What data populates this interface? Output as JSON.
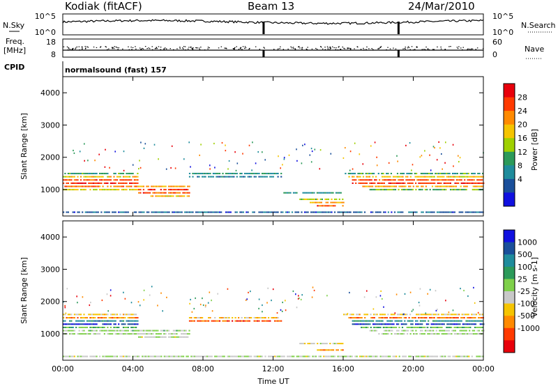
{
  "header": {
    "station": "Kodiak (fitACF)",
    "beam": "Beam 13",
    "date": "24/Mar/2010"
  },
  "sky_panel": {
    "left_label": "N.Sky",
    "right_label": "N.Search",
    "left_ticks": [
      "10^5",
      "10^0"
    ],
    "right_ticks": [
      "10^5",
      "10^0"
    ]
  },
  "freq_panel": {
    "left_label_line1": "Freq.",
    "left_label_line2": "[MHz]",
    "right_label": "Nave",
    "left_ticks": [
      "18",
      "8"
    ],
    "right_ticks": [
      "60",
      "0"
    ],
    "cpid_label": "CPID",
    "cpid_text": "normalsound (fast) 157"
  },
  "x_axis": {
    "label": "Time UT",
    "ticks": [
      "00:00",
      "04:00",
      "08:00",
      "12:00",
      "16:00",
      "20:00",
      "00:00"
    ]
  },
  "colorbars": {
    "power": {
      "label": "Power [dB]",
      "ticks": [
        "28",
        "24",
        "20",
        "16",
        "12",
        "8",
        "4"
      ],
      "colors": [
        "#e8000b",
        "#ff3a00",
        "#ff8a00",
        "#f5c400",
        "#9fd000",
        "#2c9a5a",
        "#1f8c9c",
        "#1a4f9a",
        "#1010e0"
      ]
    },
    "velocity": {
      "label": "Velocity [m s-1]",
      "ticks": [
        "1000",
        "500",
        "100",
        "25",
        "-25",
        "-100",
        "-500",
        "-1000"
      ],
      "colors": [
        "#1010e0",
        "#1a4f9a",
        "#1f8c9c",
        "#2c9a5a",
        "#7fd04a",
        "#c8c8c8",
        "#f5c400",
        "#ff8a00",
        "#ff3a00",
        "#e8000b"
      ]
    }
  },
  "chart_data": [
    {
      "type": "heatmap",
      "title": "Power [dB]",
      "xlabel": "Time UT",
      "ylabel": "Slant Range [km]",
      "xlim": [
        0,
        24
      ],
      "ylim": [
        180,
        4500
      ],
      "yticks": [
        1000,
        2000,
        3000,
        4000
      ],
      "bands": [
        {
          "t": [
            0.0,
            4.3
          ],
          "range": [
            1450,
            1550
          ],
          "value": 12
        },
        {
          "t": [
            0.0,
            4.3
          ],
          "range": [
            1350,
            1450
          ],
          "value": 20
        },
        {
          "t": [
            0.0,
            4.3
          ],
          "range": [
            1250,
            1350
          ],
          "value": 26
        },
        {
          "t": [
            0.0,
            4.3
          ],
          "range": [
            1150,
            1250
          ],
          "value": 28
        },
        {
          "t": [
            0.0,
            4.3
          ],
          "range": [
            1050,
            1150
          ],
          "value": 24
        },
        {
          "t": [
            0.0,
            4.3
          ],
          "range": [
            950,
            1050
          ],
          "value": 18
        },
        {
          "t": [
            4.3,
            7.2
          ],
          "range": [
            1050,
            1150
          ],
          "value": 22
        },
        {
          "t": [
            4.3,
            7.2
          ],
          "range": [
            950,
            1050
          ],
          "value": 28
        },
        {
          "t": [
            4.3,
            7.2
          ],
          "range": [
            850,
            950
          ],
          "value": 26
        },
        {
          "t": [
            5.0,
            7.2
          ],
          "range": [
            750,
            850
          ],
          "value": 20
        },
        {
          "t": [
            7.2,
            12.5
          ],
          "range": [
            1450,
            1550
          ],
          "value": 10
        },
        {
          "t": [
            7.2,
            12.5
          ],
          "range": [
            1350,
            1450
          ],
          "value": 8
        },
        {
          "t": [
            12.5,
            16.0
          ],
          "range": [
            850,
            950
          ],
          "value": 10
        },
        {
          "t": [
            13.5,
            16.0
          ],
          "range": [
            650,
            750
          ],
          "value": 16
        },
        {
          "t": [
            14.0,
            16.0
          ],
          "range": [
            550,
            650
          ],
          "value": 22
        },
        {
          "t": [
            14.5,
            16.0
          ],
          "range": [
            450,
            550
          ],
          "value": 26
        },
        {
          "t": [
            16.0,
            24.0
          ],
          "range": [
            1450,
            1550
          ],
          "value": 12
        },
        {
          "t": [
            16.3,
            24.0
          ],
          "range": [
            1350,
            1450
          ],
          "value": 20
        },
        {
          "t": [
            16.5,
            24.0
          ],
          "range": [
            1250,
            1350
          ],
          "value": 26
        },
        {
          "t": [
            16.5,
            24.0
          ],
          "range": [
            1150,
            1250
          ],
          "value": 28
        },
        {
          "t": [
            17.0,
            24.0
          ],
          "range": [
            1050,
            1150
          ],
          "value": 22
        },
        {
          "t": [
            17.5,
            24.0
          ],
          "range": [
            950,
            1050
          ],
          "value": 14
        },
        {
          "t": [
            0.0,
            24.0
          ],
          "range": [
            250,
            350
          ],
          "value": 6
        }
      ]
    },
    {
      "type": "heatmap",
      "title": "Velocity [m s-1]",
      "xlabel": "Time UT",
      "ylabel": "Slant Range [km]",
      "xlim": [
        0,
        24
      ],
      "ylim": [
        180,
        4500
      ],
      "yticks": [
        1000,
        2000,
        3000,
        4000
      ],
      "bands": [
        {
          "t": [
            0.0,
            4.3
          ],
          "range": [
            1550,
            1650
          ],
          "value": -300
        },
        {
          "t": [
            0.0,
            4.3
          ],
          "range": [
            1450,
            1550
          ],
          "value": -600
        },
        {
          "t": [
            0.0,
            4.3
          ],
          "range": [
            1350,
            1450
          ],
          "value": 600
        },
        {
          "t": [
            0.0,
            4.3
          ],
          "range": [
            1250,
            1350
          ],
          "value": 1000
        },
        {
          "t": [
            0.0,
            4.3
          ],
          "range": [
            1150,
            1250
          ],
          "value": 300
        },
        {
          "t": [
            0.0,
            4.3
          ],
          "range": [
            1050,
            1150
          ],
          "value": 50
        },
        {
          "t": [
            0.0,
            4.3
          ],
          "range": [
            950,
            1050
          ],
          "value": 0
        },
        {
          "t": [
            4.3,
            7.2
          ],
          "range": [
            1050,
            1150
          ],
          "value": 60
        },
        {
          "t": [
            4.3,
            7.2
          ],
          "range": [
            950,
            1050
          ],
          "value": 0
        },
        {
          "t": [
            4.3,
            7.2
          ],
          "range": [
            850,
            950
          ],
          "value": -60
        },
        {
          "t": [
            7.2,
            12.5
          ],
          "range": [
            1450,
            1550
          ],
          "value": -400
        },
        {
          "t": [
            7.2,
            12.5
          ],
          "range": [
            1350,
            1450
          ],
          "value": -800
        },
        {
          "t": [
            13.5,
            16.0
          ],
          "range": [
            650,
            750
          ],
          "value": -200
        },
        {
          "t": [
            14.5,
            16.0
          ],
          "range": [
            450,
            550
          ],
          "value": -600
        },
        {
          "t": [
            16.0,
            24.0
          ],
          "range": [
            1550,
            1650
          ],
          "value": -300
        },
        {
          "t": [
            16.3,
            24.0
          ],
          "range": [
            1450,
            1550
          ],
          "value": -700
        },
        {
          "t": [
            16.5,
            24.0
          ],
          "range": [
            1350,
            1450
          ],
          "value": 500
        },
        {
          "t": [
            16.5,
            24.0
          ],
          "range": [
            1250,
            1350
          ],
          "value": 900
        },
        {
          "t": [
            17.0,
            24.0
          ],
          "range": [
            1150,
            1250
          ],
          "value": 200
        },
        {
          "t": [
            17.5,
            24.0
          ],
          "range": [
            1050,
            1150
          ],
          "value": 0
        },
        {
          "t": [
            18.0,
            24.0
          ],
          "range": [
            950,
            1050
          ],
          "value": 0
        },
        {
          "t": [
            0.0,
            24.0
          ],
          "range": [
            250,
            350
          ],
          "value": -50
        }
      ]
    }
  ]
}
